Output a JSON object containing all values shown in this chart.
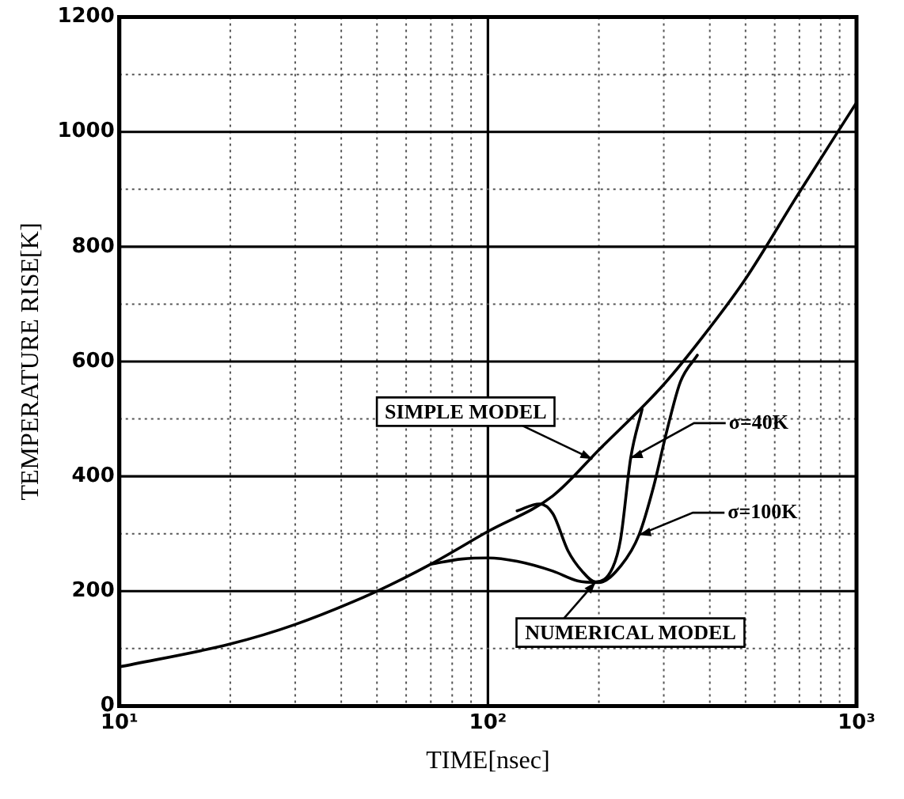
{
  "chart_data": {
    "type": "line",
    "xlabel": "TIME[nsec]",
    "ylabel": "TEMPERATURE RISE[K]",
    "log": "x",
    "grid": true,
    "legend": false,
    "marker": "none",
    "line_style": "solid",
    "xlim": [
      10,
      1000
    ],
    "xticks": [
      {
        "value": 10,
        "label": "10¹"
      },
      {
        "value": 20,
        "label": null
      },
      {
        "value": 30,
        "label": null
      },
      {
        "value": 40,
        "label": null
      },
      {
        "value": 50,
        "label": null
      },
      {
        "value": 60,
        "label": null
      },
      {
        "value": 70,
        "label": null
      },
      {
        "value": 80,
        "label": null
      },
      {
        "value": 90,
        "label": null
      },
      {
        "value": 100,
        "label": "10²"
      },
      {
        "value": 200,
        "label": null
      },
      {
        "value": 300,
        "label": null
      },
      {
        "value": 400,
        "label": null
      },
      {
        "value": 500,
        "label": null
      },
      {
        "value": 600,
        "label": null
      },
      {
        "value": 700,
        "label": null
      },
      {
        "value": 800,
        "label": null
      },
      {
        "value": 900,
        "label": null
      },
      {
        "value": 1000,
        "label": "10³"
      }
    ],
    "ylim": [
      0,
      1200
    ],
    "yticks": [
      0,
      {
        "value": 100,
        "label": null
      },
      200,
      {
        "value": 300,
        "label": null
      },
      400,
      {
        "value": 500,
        "label": null
      },
      600,
      {
        "value": 700,
        "label": null
      },
      800,
      {
        "value": 900,
        "label": null
      },
      1000,
      {
        "value": 1100,
        "label": null
      },
      1200
    ],
    "series": [
      {
        "color": "#000000",
        "x": [
          10,
          20,
          30,
          50,
          70,
          100,
          150,
          200,
          300,
          400,
          500,
          700,
          1000
        ],
        "values": [
          68,
          108,
          142,
          200,
          247,
          304,
          366,
          446,
          560,
          659,
          744,
          895,
          1051
        ]
      },
      {
        "color": "#000000",
        "x": [
          120,
          138,
          150,
          165,
          180,
          196,
          218,
          229,
          244,
          262
        ],
        "values": [
          340,
          352,
          335,
          270,
          235,
          216,
          241,
          290,
          432,
          517
        ]
      },
      {
        "color": "#000000",
        "x": [
          70,
          85,
          100,
          120,
          150,
          175,
          200,
          230,
          257,
          282,
          306,
          333,
          370
        ],
        "values": [
          247,
          256,
          258,
          252,
          235,
          218,
          215,
          245,
          298,
          384,
          480,
          565,
          611
        ]
      }
    ],
    "annotations": [
      {
        "text": "SIMPLE MODEL",
        "x": 192,
        "y": 430
      },
      {
        "text": "σ=40K",
        "x": 244,
        "y": 432
      },
      {
        "text": "σ=100K",
        "x": 257,
        "y": 298
      },
      {
        "text": "NUMERICAL MODEL",
        "x": 196,
        "y": 216
      }
    ]
  }
}
